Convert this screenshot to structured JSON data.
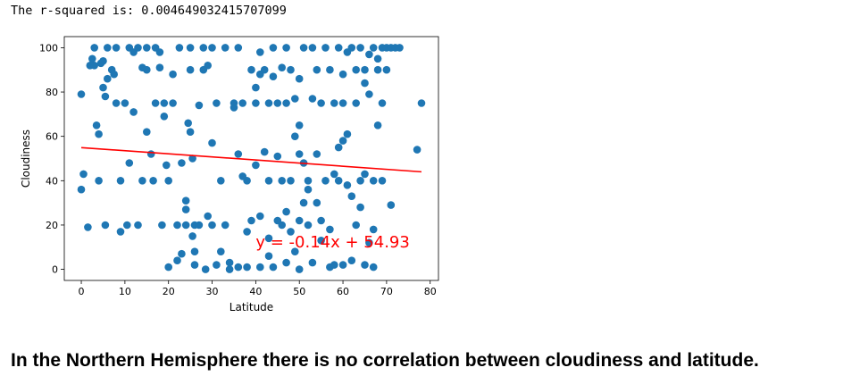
{
  "notebook": {
    "output_text": "The r-squared is: 0.004649032415707099",
    "conclusion": "In the Northern Hemisphere there is no correlation between cloudiness and latitude."
  },
  "chart_data": {
    "type": "scatter",
    "title": "",
    "xlabel": "Latitude",
    "ylabel": "Cloudiness",
    "xlim": [
      -3.9,
      81.9
    ],
    "ylim": [
      -5,
      105
    ],
    "xticks": [
      0,
      10,
      20,
      30,
      40,
      50,
      60,
      70,
      80
    ],
    "yticks": [
      0,
      20,
      40,
      60,
      80,
      100
    ],
    "grid": false,
    "point_color": "#1f77b4",
    "line_color": "#ff0000",
    "regression": {
      "slope": -0.14,
      "intercept": 54.93,
      "x_range": [
        0,
        78
      ],
      "equation": "y = -0.14x + 54.93",
      "equation_position": [
        40,
        10
      ]
    },
    "series": [
      {
        "points": [
          [
            0,
            79
          ],
          [
            0,
            36
          ],
          [
            0.5,
            43
          ],
          [
            1.5,
            19
          ],
          [
            2,
            92
          ],
          [
            2.5,
            95
          ],
          [
            3,
            92
          ],
          [
            3,
            100
          ],
          [
            3.5,
            65
          ],
          [
            4,
            61
          ],
          [
            4,
            40
          ],
          [
            4.5,
            93
          ],
          [
            5,
            82
          ],
          [
            5,
            94
          ],
          [
            5.5,
            78
          ],
          [
            5.5,
            20
          ],
          [
            6,
            86
          ],
          [
            6,
            100
          ],
          [
            7,
            90
          ],
          [
            7.5,
            88
          ],
          [
            8,
            100
          ],
          [
            8,
            75
          ],
          [
            9,
            40
          ],
          [
            9,
            17
          ],
          [
            10,
            75
          ],
          [
            10.5,
            20
          ],
          [
            11,
            100
          ],
          [
            11,
            48
          ],
          [
            12,
            71
          ],
          [
            12,
            98
          ],
          [
            13,
            100
          ],
          [
            13,
            20
          ],
          [
            14,
            91
          ],
          [
            14,
            40
          ],
          [
            15,
            90
          ],
          [
            15,
            100
          ],
          [
            15,
            62
          ],
          [
            16,
            52
          ],
          [
            16.5,
            40
          ],
          [
            17,
            100
          ],
          [
            17,
            75
          ],
          [
            18,
            98
          ],
          [
            18,
            91
          ],
          [
            18.5,
            20
          ],
          [
            19,
            75
          ],
          [
            19,
            69
          ],
          [
            19.5,
            47
          ],
          [
            20,
            40
          ],
          [
            20,
            1
          ],
          [
            21,
            88
          ],
          [
            21,
            75
          ],
          [
            22,
            20
          ],
          [
            22,
            4
          ],
          [
            22.5,
            100
          ],
          [
            23,
            48
          ],
          [
            23,
            7
          ],
          [
            24,
            31
          ],
          [
            24,
            27
          ],
          [
            24,
            20
          ],
          [
            24.5,
            66
          ],
          [
            25,
            100
          ],
          [
            25,
            90
          ],
          [
            25,
            62
          ],
          [
            25.5,
            50
          ],
          [
            25.5,
            15
          ],
          [
            26,
            20
          ],
          [
            26,
            8
          ],
          [
            26,
            2
          ],
          [
            27,
            74
          ],
          [
            27,
            20
          ],
          [
            28,
            100
          ],
          [
            28,
            90
          ],
          [
            28.5,
            0
          ],
          [
            29,
            24
          ],
          [
            29,
            92
          ],
          [
            30,
            57
          ],
          [
            30,
            20
          ],
          [
            30,
            100
          ],
          [
            31,
            75
          ],
          [
            31,
            2
          ],
          [
            32,
            40
          ],
          [
            32,
            8
          ],
          [
            33,
            100
          ],
          [
            33,
            20
          ],
          [
            34,
            0
          ],
          [
            34,
            3
          ],
          [
            35,
            75
          ],
          [
            35,
            73
          ],
          [
            36,
            100
          ],
          [
            36,
            52
          ],
          [
            36,
            1
          ],
          [
            37,
            75
          ],
          [
            37,
            42
          ],
          [
            38,
            40
          ],
          [
            38,
            17
          ],
          [
            38,
            1
          ],
          [
            39,
            90
          ],
          [
            39,
            22
          ],
          [
            40,
            75
          ],
          [
            40,
            47
          ],
          [
            40,
            82
          ],
          [
            41,
            98
          ],
          [
            41,
            88
          ],
          [
            41,
            24
          ],
          [
            41,
            1
          ],
          [
            42,
            90
          ],
          [
            42,
            53
          ],
          [
            43,
            75
          ],
          [
            43,
            40
          ],
          [
            43,
            6
          ],
          [
            43,
            14
          ],
          [
            44,
            100
          ],
          [
            44,
            87
          ],
          [
            44,
            1
          ],
          [
            45,
            75
          ],
          [
            45,
            22
          ],
          [
            45,
            51
          ],
          [
            46,
            91
          ],
          [
            46,
            40
          ],
          [
            46,
            20
          ],
          [
            47,
            100
          ],
          [
            47,
            75
          ],
          [
            47,
            26
          ],
          [
            47,
            3
          ],
          [
            48,
            90
          ],
          [
            48,
            40
          ],
          [
            48,
            17
          ],
          [
            49,
            77
          ],
          [
            49,
            60
          ],
          [
            49,
            8
          ],
          [
            50,
            86
          ],
          [
            50,
            65
          ],
          [
            50,
            52
          ],
          [
            50,
            22
          ],
          [
            50,
            0
          ],
          [
            51,
            100
          ],
          [
            51,
            48
          ],
          [
            51,
            30
          ],
          [
            52,
            40
          ],
          [
            52,
            36
          ],
          [
            52,
            20
          ],
          [
            53,
            100
          ],
          [
            53,
            77
          ],
          [
            53,
            3
          ],
          [
            54,
            90
          ],
          [
            54,
            52
          ],
          [
            54,
            30
          ],
          [
            55,
            75
          ],
          [
            55,
            22
          ],
          [
            55,
            13
          ],
          [
            56,
            100
          ],
          [
            56,
            40
          ],
          [
            57,
            90
          ],
          [
            57,
            18
          ],
          [
            57,
            1
          ],
          [
            58,
            75
          ],
          [
            58,
            43
          ],
          [
            58,
            2
          ],
          [
            59,
            100
          ],
          [
            59,
            55
          ],
          [
            59,
            40
          ],
          [
            60,
            88
          ],
          [
            60,
            75
          ],
          [
            60,
            58
          ],
          [
            60,
            2
          ],
          [
            61,
            98
          ],
          [
            61,
            38
          ],
          [
            61,
            61
          ],
          [
            62,
            100
          ],
          [
            62,
            33
          ],
          [
            62,
            4
          ],
          [
            63,
            90
          ],
          [
            63,
            75
          ],
          [
            63,
            20
          ],
          [
            64,
            100
          ],
          [
            64,
            40
          ],
          [
            64,
            28
          ],
          [
            65,
            90
          ],
          [
            65,
            84
          ],
          [
            65,
            43
          ],
          [
            65,
            2
          ],
          [
            66,
            97
          ],
          [
            66,
            79
          ],
          [
            66,
            12
          ],
          [
            67,
            100
          ],
          [
            67,
            40
          ],
          [
            67,
            18
          ],
          [
            67,
            1
          ],
          [
            68,
            95
          ],
          [
            68,
            90
          ],
          [
            68,
            65
          ],
          [
            69,
            100
          ],
          [
            69,
            75
          ],
          [
            69,
            40
          ],
          [
            70,
            100
          ],
          [
            70,
            90
          ],
          [
            71,
            100
          ],
          [
            71,
            29
          ],
          [
            72,
            100
          ],
          [
            73,
            100
          ],
          [
            77,
            54
          ],
          [
            78,
            75
          ]
        ]
      }
    ]
  }
}
